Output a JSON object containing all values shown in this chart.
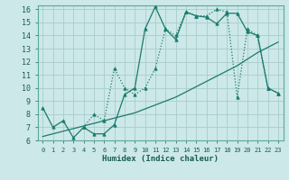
{
  "title": "",
  "xlabel": "Humidex (Indice chaleur)",
  "bg_color": "#cce8e8",
  "grid_color": "#aacccc",
  "line_color": "#1a7a6e",
  "xlim": [
    -0.5,
    23.5
  ],
  "ylim": [
    6,
    16.3
  ],
  "yticks": [
    6,
    7,
    8,
    9,
    10,
    11,
    12,
    13,
    14,
    15,
    16
  ],
  "xticks": [
    0,
    1,
    2,
    3,
    4,
    5,
    6,
    7,
    8,
    9,
    10,
    11,
    12,
    13,
    14,
    15,
    16,
    17,
    18,
    19,
    20,
    21,
    22,
    23
  ],
  "series1_x": [
    0,
    1,
    2,
    3,
    4,
    5,
    6,
    7,
    8,
    9,
    10,
    11,
    12,
    13,
    14,
    15,
    16,
    17,
    18,
    19,
    20,
    21,
    22,
    23
  ],
  "series1_y": [
    8.5,
    7.0,
    7.5,
    6.2,
    7.0,
    6.5,
    6.5,
    7.2,
    9.5,
    10.0,
    14.5,
    16.2,
    14.5,
    13.7,
    15.8,
    15.5,
    15.4,
    14.9,
    15.7,
    15.7,
    14.3,
    14.0,
    10.0,
    9.6
  ],
  "series2_x": [
    0,
    1,
    2,
    3,
    4,
    5,
    6,
    7,
    8,
    9,
    10,
    11,
    12,
    13,
    14,
    15,
    16,
    17,
    18,
    19,
    20,
    21,
    22,
    23
  ],
  "series2_y": [
    6.3,
    6.5,
    6.7,
    6.9,
    7.1,
    7.3,
    7.5,
    7.7,
    7.9,
    8.1,
    8.4,
    8.7,
    9.0,
    9.3,
    9.7,
    10.1,
    10.5,
    10.9,
    11.3,
    11.7,
    12.2,
    12.7,
    13.1,
    13.5
  ],
  "series3_x": [
    4,
    5,
    6,
    7,
    8,
    9,
    10,
    11,
    12,
    13,
    14,
    15,
    16,
    17,
    18,
    19,
    20,
    21,
    22,
    23
  ],
  "series3_y": [
    7.0,
    8.0,
    7.5,
    11.5,
    10.0,
    9.5,
    10.0,
    11.5,
    14.5,
    14.0,
    15.8,
    15.5,
    15.5,
    16.0,
    15.8,
    9.3,
    14.5,
    14.0,
    10.0,
    9.6
  ]
}
